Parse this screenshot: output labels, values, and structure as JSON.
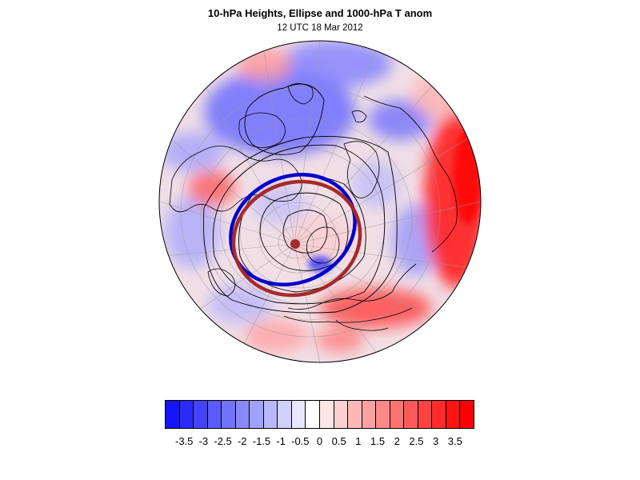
{
  "title": "10-hPa Heights, Ellipse and 1000-hPa T anom",
  "subtitle": "12 UTC 18 Mar 2012",
  "colorbar": {
    "tick_labels": [
      "-3.5",
      "-3",
      "-2.5",
      "-2",
      "-1.5",
      "-1",
      "-0.5",
      "0",
      "0.5",
      "1",
      "1.5",
      "2",
      "2.5",
      "3",
      "3.5"
    ],
    "colors": [
      "#1414ff",
      "#2b2bff",
      "#4343ff",
      "#5a5aff",
      "#7272ff",
      "#8989ff",
      "#a1a1ff",
      "#b8b8ff",
      "#d0d0ff",
      "#e7e7ff",
      "#ffffff",
      "#ffe7e7",
      "#ffd0d0",
      "#ffb8b8",
      "#ffa1a1",
      "#ff8989",
      "#ff7272",
      "#ff5a5a",
      "#ff4343",
      "#ff2b2b",
      "#ff1414",
      "#ff0000"
    ]
  },
  "map": {
    "projection": "orthographic-north-polar",
    "ellipse_colors": {
      "blue": "#0000cc",
      "red": "#a52a2a"
    },
    "contour_color": "#000000"
  }
}
